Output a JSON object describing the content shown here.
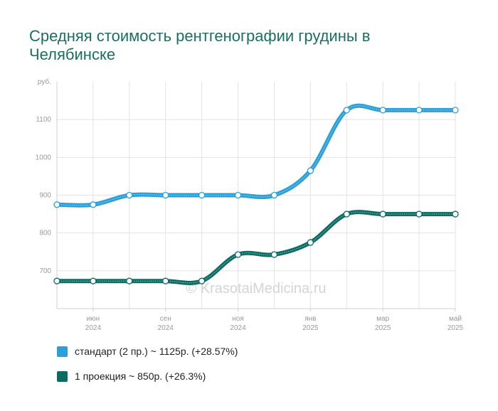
{
  "title": "Средняя стоимость рентгенографии грудины в Челябинске",
  "watermark": "© KrasotaiMedicina.ru",
  "chart_data": {
    "type": "line",
    "y_unit_label": "руб.",
    "ylim": [
      600,
      1200
    ],
    "y_ticks": [
      700,
      800,
      900,
      1000,
      1100
    ],
    "x_tick_labels": [
      {
        "month": "июн",
        "year": "2024"
      },
      {
        "month": "сен",
        "year": "2024"
      },
      {
        "month": "ноя",
        "year": "2024"
      },
      {
        "month": "янв",
        "year": "2025"
      },
      {
        "month": "мар",
        "year": "2025"
      },
      {
        "month": "май",
        "year": "2025"
      }
    ],
    "grid": true,
    "legend_position": "bottom-left",
    "series": [
      {
        "name": "стандарт (2 пр.) ~ 1125р. (+28.57%)",
        "color": "#2a9fd8",
        "values": [
          875,
          875,
          900,
          900,
          900,
          900,
          900,
          965,
          1125,
          1125,
          1125,
          1125
        ]
      },
      {
        "name": "1 проекция ~ 850р. (+26.3%)",
        "color": "#0c6b63",
        "values": [
          673,
          673,
          673,
          673,
          673,
          743,
          743,
          775,
          850,
          850,
          850,
          850
        ]
      }
    ]
  }
}
